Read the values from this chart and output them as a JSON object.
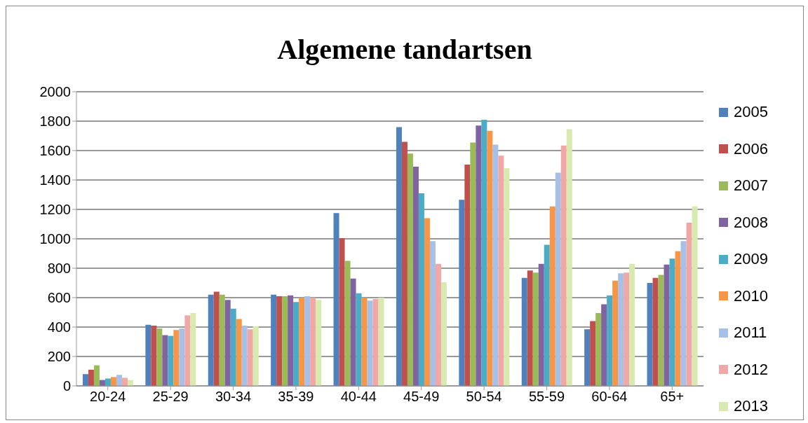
{
  "chart_data": {
    "type": "bar",
    "title": "Algemene tandartsen",
    "categories": [
      "20-24",
      "25-29",
      "30-34",
      "35-39",
      "40-44",
      "45-49",
      "50-54",
      "55-59",
      "60-64",
      "65+"
    ],
    "series": [
      {
        "name": "2005",
        "color": "#4f81bd",
        "values": [
          80,
          415,
          620,
          620,
          1175,
          1760,
          1265,
          735,
          385,
          700
        ]
      },
      {
        "name": "2006",
        "color": "#c0504d",
        "values": [
          110,
          410,
          640,
          610,
          1005,
          1660,
          1505,
          785,
          440,
          735
        ]
      },
      {
        "name": "2007",
        "color": "#9bbb59",
        "values": [
          140,
          390,
          620,
          610,
          850,
          1580,
          1655,
          770,
          495,
          755
        ]
      },
      {
        "name": "2008",
        "color": "#8064a2",
        "values": [
          40,
          345,
          585,
          615,
          730,
          1490,
          1770,
          830,
          555,
          825
        ]
      },
      {
        "name": "2009",
        "color": "#4bacc6",
        "values": [
          50,
          340,
          525,
          570,
          630,
          1310,
          1810,
          960,
          615,
          865
        ]
      },
      {
        "name": "2010",
        "color": "#f79646",
        "values": [
          60,
          380,
          455,
          600,
          600,
          1140,
          1735,
          1220,
          715,
          915
        ]
      },
      {
        "name": "2011",
        "color": "#a7c0e8",
        "values": [
          75,
          390,
          410,
          610,
          580,
          985,
          1640,
          1450,
          765,
          985
        ]
      },
      {
        "name": "2012",
        "color": "#f0a8a6",
        "values": [
          55,
          480,
          385,
          600,
          590,
          830,
          1565,
          1635,
          770,
          1110
        ]
      },
      {
        "name": "2013",
        "color": "#d8eab0",
        "values": [
          40,
          495,
          405,
          585,
          600,
          705,
          1480,
          1745,
          830,
          1220
        ]
      }
    ],
    "ylim": [
      0,
      2000
    ],
    "yticks": [
      0,
      200,
      400,
      600,
      800,
      1000,
      1200,
      1400,
      1600,
      1800,
      2000
    ],
    "grid": "y",
    "legend": "right"
  }
}
